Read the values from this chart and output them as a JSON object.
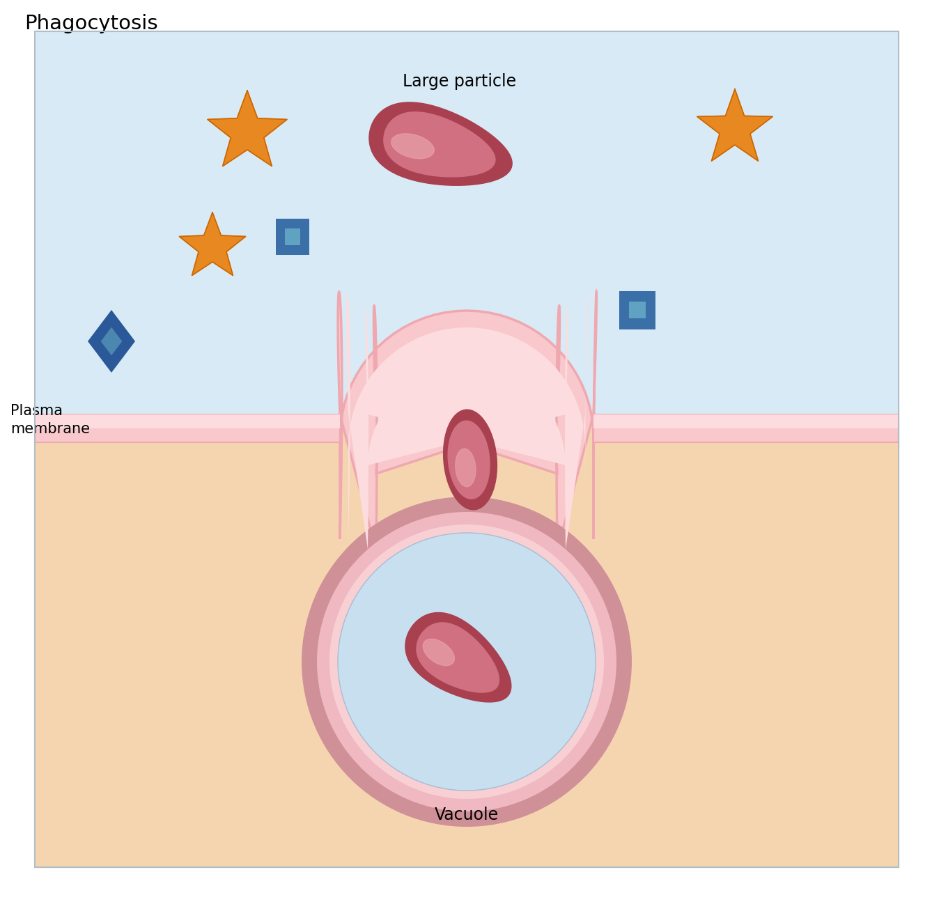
{
  "title": "Phagocytosis",
  "label_large_particle": "Large particle",
  "label_plasma_membrane": "Plasma\nmembrane",
  "label_vacuole": "Vacuole",
  "bg_extracellular": "#d8eaf5",
  "bg_intracellular": "#f5d5b0",
  "mem_color1": "#f0a8b0",
  "mem_color2": "#f8c8cc",
  "mem_color3": "#fcdcde",
  "particle_dark": "#a84050",
  "particle_mid": "#d07080",
  "particle_light": "#e8a0a8",
  "star_color": "#e88820",
  "star_edge": "#cc6600",
  "square_fill": "#3a6fa8",
  "square_inner": "#6ab0c8",
  "diamond_fill": "#2a5898",
  "diamond_inner": "#5898b8",
  "vacuole_bg": "#c8dff0",
  "vacuole_ring_dark": "#d09098",
  "vacuole_ring_mid": "#f0b8c0",
  "vacuole_ring_light": "#f8d0d4"
}
